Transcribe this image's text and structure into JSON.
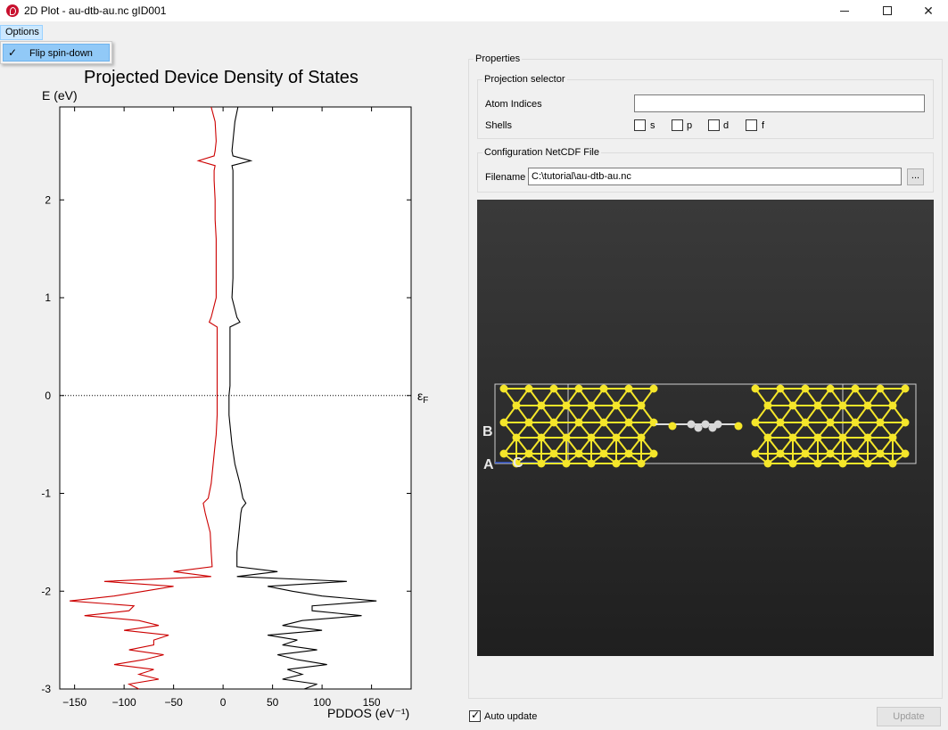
{
  "window": {
    "title": "2D Plot - au-dtb-au.nc gID001",
    "min_icon": "minimize-icon",
    "max_icon": "maximize-icon",
    "close_glyph": "✕"
  },
  "menu": {
    "options_label": "Options",
    "dropdown_item": "Flip spin-down",
    "dropdown_checked": true
  },
  "plot": {
    "title": "Projected Device Density of States",
    "ylabel": "E (eV)",
    "xlabel": "PDDOS (eV⁻¹)",
    "fermi_label": "εF",
    "spin_up_color": "#000000",
    "spin_down_color": "#cc0000"
  },
  "chart_data": {
    "type": "line",
    "title": "Projected Device Density of States",
    "xlabel": "PDDOS (eV⁻¹)",
    "ylabel": "E (eV)",
    "xlim": [
      -165,
      190
    ],
    "ylim": [
      -3,
      2.95
    ],
    "x_ticks": [
      -150,
      -100,
      -50,
      0,
      50,
      100,
      150
    ],
    "y_ticks": [
      -3,
      -2,
      -1,
      0,
      1,
      2
    ],
    "grid": false,
    "fermi_line": 0,
    "series": [
      {
        "color": "#000000",
        "points": [
          [
            2.95,
            15
          ],
          [
            2.8,
            12
          ],
          [
            2.6,
            10
          ],
          [
            2.5,
            9
          ],
          [
            2.45,
            10
          ],
          [
            2.4,
            28
          ],
          [
            2.35,
            9
          ],
          [
            2.3,
            10
          ],
          [
            2.2,
            10
          ],
          [
            2.0,
            10
          ],
          [
            1.8,
            10
          ],
          [
            1.6,
            10
          ],
          [
            1.4,
            10
          ],
          [
            1.2,
            10
          ],
          [
            1.0,
            9
          ],
          [
            0.8,
            14
          ],
          [
            0.75,
            17
          ],
          [
            0.7,
            7
          ],
          [
            0.5,
            7
          ],
          [
            0.3,
            7
          ],
          [
            0.1,
            7
          ],
          [
            0,
            6
          ],
          [
            -0.2,
            6
          ],
          [
            -0.4,
            8
          ],
          [
            -0.5,
            9
          ],
          [
            -0.7,
            12
          ],
          [
            -0.9,
            17
          ],
          [
            -1.05,
            20
          ],
          [
            -1.1,
            23
          ],
          [
            -1.15,
            19
          ],
          [
            -1.2,
            18
          ],
          [
            -1.4,
            16
          ],
          [
            -1.6,
            14
          ],
          [
            -1.75,
            14
          ],
          [
            -1.8,
            55
          ],
          [
            -1.85,
            14
          ],
          [
            -1.9,
            125
          ],
          [
            -1.95,
            45
          ],
          [
            -2.0,
            70
          ],
          [
            -2.05,
            100
          ],
          [
            -2.1,
            155
          ],
          [
            -2.15,
            90
          ],
          [
            -2.2,
            90
          ],
          [
            -2.25,
            140
          ],
          [
            -2.3,
            80
          ],
          [
            -2.35,
            60
          ],
          [
            -2.4,
            100
          ],
          [
            -2.45,
            45
          ],
          [
            -2.5,
            75
          ],
          [
            -2.55,
            60
          ],
          [
            -2.6,
            95
          ],
          [
            -2.65,
            55
          ],
          [
            -2.7,
            75
          ],
          [
            -2.75,
            105
          ],
          [
            -2.8,
            65
          ],
          [
            -2.85,
            80
          ],
          [
            -2.9,
            60
          ],
          [
            -2.95,
            95
          ],
          [
            -3.0,
            82
          ]
        ]
      },
      {
        "color": "#cc0000",
        "points": [
          [
            2.95,
            -12
          ],
          [
            2.8,
            -8
          ],
          [
            2.6,
            -7
          ],
          [
            2.5,
            -8
          ],
          [
            2.45,
            -9
          ],
          [
            2.4,
            -25
          ],
          [
            2.35,
            -8
          ],
          [
            2.3,
            -9
          ],
          [
            2.2,
            -9
          ],
          [
            2.0,
            -8
          ],
          [
            1.8,
            -8
          ],
          [
            1.6,
            -7
          ],
          [
            1.4,
            -7
          ],
          [
            1.2,
            -7
          ],
          [
            1.0,
            -7
          ],
          [
            0.8,
            -12
          ],
          [
            0.75,
            -14
          ],
          [
            0.7,
            -6
          ],
          [
            0.5,
            -6
          ],
          [
            0.3,
            -6
          ],
          [
            0.1,
            -6
          ],
          [
            0,
            -6
          ],
          [
            -0.2,
            -6
          ],
          [
            -0.4,
            -7
          ],
          [
            -0.5,
            -8
          ],
          [
            -0.7,
            -10
          ],
          [
            -0.9,
            -12
          ],
          [
            -1.05,
            -15
          ],
          [
            -1.1,
            -20
          ],
          [
            -1.15,
            -19
          ],
          [
            -1.2,
            -18
          ],
          [
            -1.4,
            -13
          ],
          [
            -1.6,
            -12
          ],
          [
            -1.75,
            -11
          ],
          [
            -1.8,
            -50
          ],
          [
            -1.85,
            -12
          ],
          [
            -1.9,
            -120
          ],
          [
            -1.95,
            -50
          ],
          [
            -2.0,
            -80
          ],
          [
            -2.05,
            -110
          ],
          [
            -2.1,
            -155
          ],
          [
            -2.15,
            -90
          ],
          [
            -2.2,
            -95
          ],
          [
            -2.25,
            -140
          ],
          [
            -2.3,
            -85
          ],
          [
            -2.35,
            -65
          ],
          [
            -2.4,
            -100
          ],
          [
            -2.45,
            -55
          ],
          [
            -2.5,
            -70
          ],
          [
            -2.55,
            -70
          ],
          [
            -2.6,
            -95
          ],
          [
            -2.65,
            -60
          ],
          [
            -2.7,
            -80
          ],
          [
            -2.75,
            -110
          ],
          [
            -2.8,
            -70
          ],
          [
            -2.85,
            -85
          ],
          [
            -2.9,
            -65
          ],
          [
            -2.95,
            -95
          ],
          [
            -3.0,
            -85
          ]
        ]
      }
    ]
  },
  "properties": {
    "title": "Properties",
    "projection": {
      "title": "Projection selector",
      "atom_indices_label": "Atom Indices",
      "atom_indices_value": "",
      "shells_label": "Shells",
      "shells": [
        "s",
        "p",
        "d",
        "f"
      ]
    },
    "config": {
      "title": "Configuration NetCDF File",
      "filename_label": "Filename",
      "filename_value": "C:\\tutorial\\au-dtb-au.nc",
      "browse_label": "..."
    },
    "viewer": {
      "axis_b": "B",
      "axis_a": "A",
      "axis_c": "C",
      "gold_color": "#f5e62a",
      "carbon_color": "#d8d8d8"
    }
  },
  "footer": {
    "auto_update_label": "Auto update",
    "auto_update_checked": true,
    "update_label": "Update"
  }
}
